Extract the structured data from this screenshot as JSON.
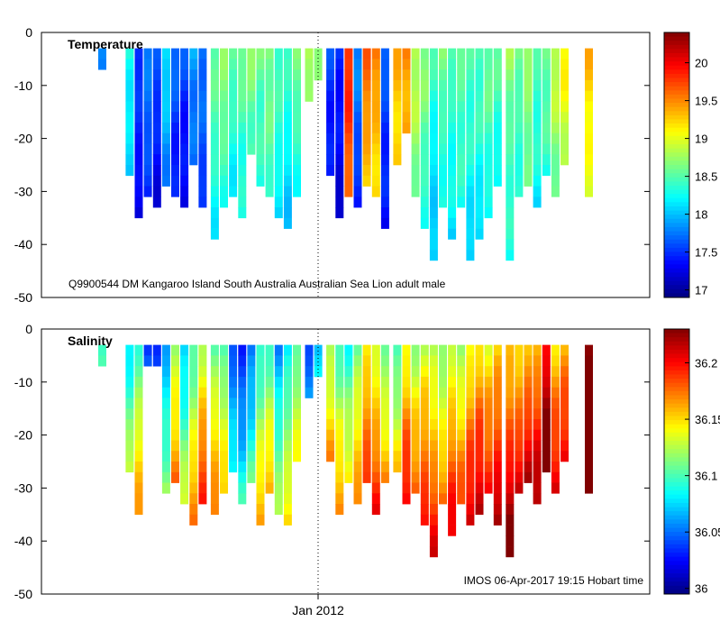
{
  "chart_data": [
    {
      "type": "heatmap",
      "title": "Temperature",
      "annotation": "Q9900544 DM Kangaroo Island South Australia Australian Sea Lion adult male",
      "xlabel": "",
      "ylabel": "",
      "x_tick_label": "Jan 2012",
      "ylim": [
        -50,
        0
      ],
      "y_ticks": [
        0,
        -10,
        -20,
        -30,
        -40,
        -50
      ],
      "colorbar": {
        "min": 16.9,
        "max": 20.4,
        "ticks": [
          17,
          17.5,
          18,
          18.5,
          19,
          19.5,
          20
        ]
      },
      "profiles": [
        {
          "x": 0.1,
          "depth": 7,
          "base": 17.7
        },
        {
          "x": 0.145,
          "depth": 27,
          "base": 18.3
        },
        {
          "x": 0.16,
          "depth": 35,
          "base": 17.6
        },
        {
          "x": 0.175,
          "depth": 31,
          "base": 17.8
        },
        {
          "x": 0.19,
          "depth": 33,
          "base": 17.6
        },
        {
          "x": 0.205,
          "depth": 28,
          "base": 18.1
        },
        {
          "x": 0.22,
          "depth": 31,
          "base": 17.7
        },
        {
          "x": 0.235,
          "depth": 33,
          "base": 17.6
        },
        {
          "x": 0.25,
          "depth": 25,
          "base": 17.9
        },
        {
          "x": 0.265,
          "depth": 32,
          "base": 17.8
        },
        {
          "x": 0.285,
          "depth": 39,
          "base": 18.6
        },
        {
          "x": 0.3,
          "depth": 33,
          "base": 18.7
        },
        {
          "x": 0.315,
          "depth": 31,
          "base": 18.5
        },
        {
          "x": 0.33,
          "depth": 35,
          "base": 18.6
        },
        {
          "x": 0.345,
          "depth": 22,
          "base": 18.7
        },
        {
          "x": 0.36,
          "depth": 28,
          "base": 18.6
        },
        {
          "x": 0.375,
          "depth": 31,
          "base": 18.7
        },
        {
          "x": 0.39,
          "depth": 34,
          "base": 18.5
        },
        {
          "x": 0.405,
          "depth": 36,
          "base": 18.4
        },
        {
          "x": 0.42,
          "depth": 30,
          "base": 18.6
        },
        {
          "x": 0.44,
          "depth": 12,
          "base": 18.8
        },
        {
          "x": 0.455,
          "depth": 9,
          "base": 18.7
        },
        {
          "x": 0.475,
          "depth": 26,
          "base": 17.6
        },
        {
          "x": 0.49,
          "depth": 35,
          "base": 17.5
        },
        {
          "x": 0.505,
          "depth": 30,
          "base": 19.9
        },
        {
          "x": 0.52,
          "depth": 33,
          "base": 17.8
        },
        {
          "x": 0.535,
          "depth": 28,
          "base": 19.6
        },
        {
          "x": 0.55,
          "depth": 30,
          "base": 19.5
        },
        {
          "x": 0.565,
          "depth": 36,
          "base": 17.7
        },
        {
          "x": 0.585,
          "depth": 25,
          "base": 19.4
        },
        {
          "x": 0.6,
          "depth": 18,
          "base": 19.5
        },
        {
          "x": 0.615,
          "depth": 30,
          "base": 18.9
        },
        {
          "x": 0.63,
          "depth": 37,
          "base": 18.7
        },
        {
          "x": 0.645,
          "depth": 43,
          "base": 18.4
        },
        {
          "x": 0.66,
          "depth": 33,
          "base": 18.6
        },
        {
          "x": 0.675,
          "depth": 38,
          "base": 18.5
        },
        {
          "x": 0.69,
          "depth": 32,
          "base": 18.6
        },
        {
          "x": 0.705,
          "depth": 43,
          "base": 18.5
        },
        {
          "x": 0.72,
          "depth": 39,
          "base": 18.5
        },
        {
          "x": 0.735,
          "depth": 35,
          "base": 18.6
        },
        {
          "x": 0.75,
          "depth": 28,
          "base": 18.5
        },
        {
          "x": 0.77,
          "depth": 43,
          "base": 18.7
        },
        {
          "x": 0.785,
          "depth": 30,
          "base": 18.6
        },
        {
          "x": 0.8,
          "depth": 29,
          "base": 18.8
        },
        {
          "x": 0.815,
          "depth": 33,
          "base": 18.5
        },
        {
          "x": 0.83,
          "depth": 26,
          "base": 18.6
        },
        {
          "x": 0.845,
          "depth": 30,
          "base": 18.9
        },
        {
          "x": 0.86,
          "depth": 25,
          "base": 19.1
        },
        {
          "x": 0.9,
          "depth": 31,
          "base": 19.3
        }
      ]
    },
    {
      "type": "heatmap",
      "title": "Salinity",
      "annotation": "IMOS 06-Apr-2017 19:15 Hobart time",
      "xlabel": "",
      "ylabel": "",
      "x_tick_label": "Jan 2012",
      "ylim": [
        -50,
        0
      ],
      "y_ticks": [
        0,
        -10,
        -20,
        -30,
        -40,
        -50
      ],
      "colorbar": {
        "min": 35.995,
        "max": 36.23,
        "ticks": [
          36,
          36.05,
          36.1,
          36.15,
          36.2
        ]
      },
      "profiles": [
        {
          "x": 0.1,
          "depth": 7,
          "base": 36.09
        },
        {
          "x": 0.145,
          "depth": 27,
          "base": 36.08
        },
        {
          "x": 0.16,
          "depth": 35,
          "base": 36.1
        },
        {
          "x": 0.175,
          "depth": 7,
          "base": 36.04
        },
        {
          "x": 0.19,
          "depth": 7,
          "base": 36.03
        },
        {
          "x": 0.205,
          "depth": 31,
          "base": 36.06
        },
        {
          "x": 0.22,
          "depth": 28,
          "base": 36.12
        },
        {
          "x": 0.235,
          "depth": 33,
          "base": 36.07
        },
        {
          "x": 0.25,
          "depth": 37,
          "base": 36.1
        },
        {
          "x": 0.265,
          "depth": 32,
          "base": 36.13
        },
        {
          "x": 0.285,
          "depth": 35,
          "base": 36.11
        },
        {
          "x": 0.3,
          "depth": 30,
          "base": 36.1
        },
        {
          "x": 0.315,
          "depth": 27,
          "base": 36.04
        },
        {
          "x": 0.33,
          "depth": 32,
          "base": 36.03
        },
        {
          "x": 0.345,
          "depth": 28,
          "base": 36.05
        },
        {
          "x": 0.36,
          "depth": 36,
          "base": 36.09
        },
        {
          "x": 0.375,
          "depth": 30,
          "base": 36.1
        },
        {
          "x": 0.39,
          "depth": 35,
          "base": 36.06
        },
        {
          "x": 0.405,
          "depth": 37,
          "base": 36.08
        },
        {
          "x": 0.42,
          "depth": 25,
          "base": 36.1
        },
        {
          "x": 0.44,
          "depth": 12,
          "base": 36.04
        },
        {
          "x": 0.455,
          "depth": 9,
          "base": 36.07
        },
        {
          "x": 0.475,
          "depth": 25,
          "base": 36.12
        },
        {
          "x": 0.49,
          "depth": 35,
          "base": 36.1
        },
        {
          "x": 0.505,
          "depth": 28,
          "base": 36.09
        },
        {
          "x": 0.52,
          "depth": 33,
          "base": 36.11
        },
        {
          "x": 0.535,
          "depth": 29,
          "base": 36.14
        },
        {
          "x": 0.55,
          "depth": 34,
          "base": 36.13
        },
        {
          "x": 0.565,
          "depth": 28,
          "base": 36.11
        },
        {
          "x": 0.585,
          "depth": 26,
          "base": 36.1
        },
        {
          "x": 0.6,
          "depth": 32,
          "base": 36.14
        },
        {
          "x": 0.615,
          "depth": 30,
          "base": 36.12
        },
        {
          "x": 0.63,
          "depth": 37,
          "base": 36.13
        },
        {
          "x": 0.645,
          "depth": 43,
          "base": 36.12
        },
        {
          "x": 0.66,
          "depth": 33,
          "base": 36.11
        },
        {
          "x": 0.675,
          "depth": 38,
          "base": 36.13
        },
        {
          "x": 0.69,
          "depth": 32,
          "base": 36.12
        },
        {
          "x": 0.705,
          "depth": 37,
          "base": 36.14
        },
        {
          "x": 0.72,
          "depth": 35,
          "base": 36.15
        },
        {
          "x": 0.735,
          "depth": 30,
          "base": 36.14
        },
        {
          "x": 0.75,
          "depth": 37,
          "base": 36.15
        },
        {
          "x": 0.77,
          "depth": 43,
          "base": 36.15
        },
        {
          "x": 0.785,
          "depth": 30,
          "base": 36.15
        },
        {
          "x": 0.8,
          "depth": 29,
          "base": 36.16
        },
        {
          "x": 0.815,
          "depth": 33,
          "base": 36.16
        },
        {
          "x": 0.83,
          "depth": 26,
          "base": 36.2
        },
        {
          "x": 0.845,
          "depth": 30,
          "base": 36.15
        },
        {
          "x": 0.86,
          "depth": 25,
          "base": 36.16
        },
        {
          "x": 0.9,
          "depth": 31,
          "base": 36.22
        }
      ]
    }
  ]
}
